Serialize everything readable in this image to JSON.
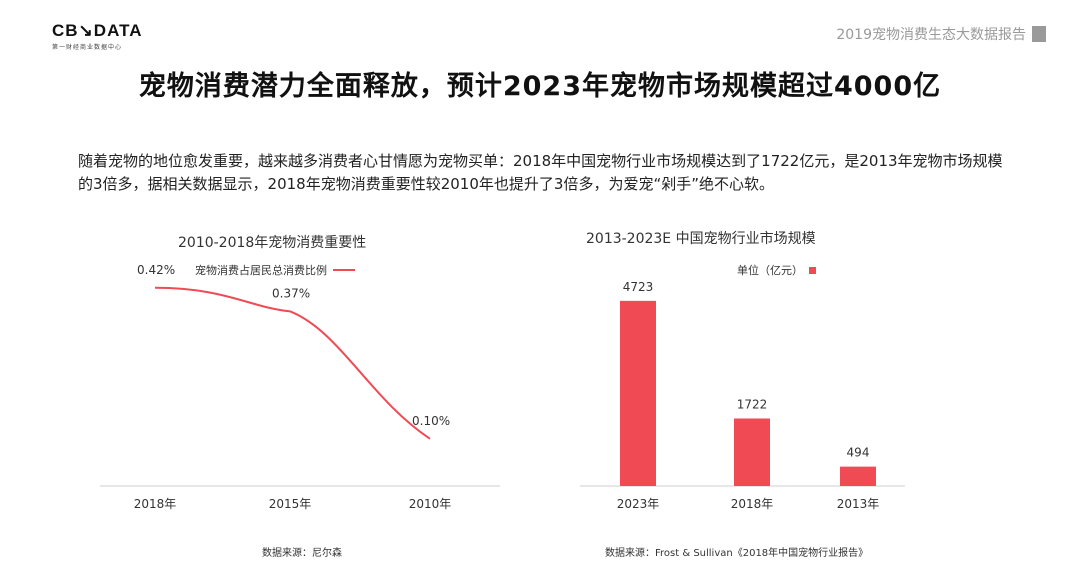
{
  "logo": {
    "main": "CB↘DATA",
    "sub": "第一财经商业数据中心"
  },
  "report_tag": "2019宠物消费生态大数据报告",
  "page_title": "宠物消费潜力全面释放，预计2023年宠物市场规模超过4000亿",
  "intro": "随着宠物的地位愈发重要，越来越多消费者心甘情愿为宠物买单：2018年中国宠物行业市场规模达到了1722亿元，是2013年宠物市场规模的3倍多，据相关数据显示，2018年宠物消费重要性较2010年也提升了3倍多，为爱宠“剁手”绝不心软。",
  "chart_data": [
    {
      "type": "line",
      "title": "2010-2018年宠物消费重要性",
      "legend": "宠物消费占居民总消费比例",
      "categories": [
        "2010年",
        "2015年",
        "2018年"
      ],
      "values": [
        0.1,
        0.37,
        0.42
      ],
      "labels": [
        "0.10%",
        "0.37%",
        "0.42%"
      ],
      "ylim": [
        0,
        0.5
      ],
      "grid": false,
      "source": "数据来源：尼尔森",
      "color": "#f04a55"
    },
    {
      "type": "bar",
      "title": "2013-2023E 中国宠物行业市场规模",
      "legend": "单位（亿元）",
      "categories": [
        "2013年",
        "2018年",
        "2023年"
      ],
      "values": [
        494,
        1722,
        4723
      ],
      "ylim": [
        0,
        5000
      ],
      "grid": false,
      "source": "数据来源：Frost & Sullivan《2018年中国宠物行业报告》",
      "color": "#f04a55"
    }
  ]
}
